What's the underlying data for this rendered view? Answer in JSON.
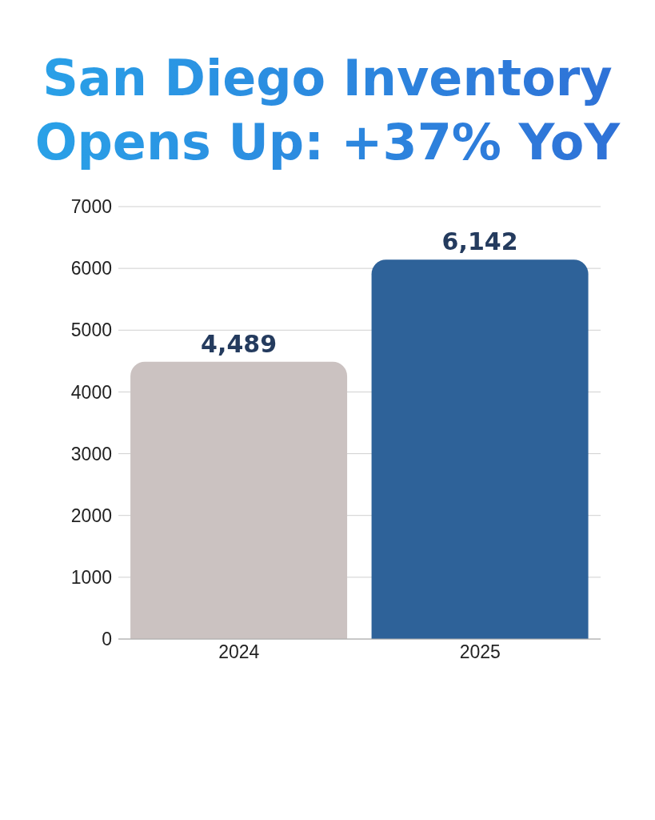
{
  "chart_data": {
    "type": "bar",
    "title": "San Diego Inventory Opens Up: +37% YoY",
    "categories": [
      "2024",
      "2025"
    ],
    "values": [
      4489,
      6142
    ],
    "colors": [
      "#cbc2c1",
      "#2e6299"
    ],
    "value_labels": [
      "4,489",
      "6,142"
    ],
    "ylim": [
      0,
      7000
    ],
    "yticks": [
      0,
      1000,
      2000,
      3000,
      4000,
      5000,
      6000,
      7000
    ],
    "grid": "y"
  }
}
